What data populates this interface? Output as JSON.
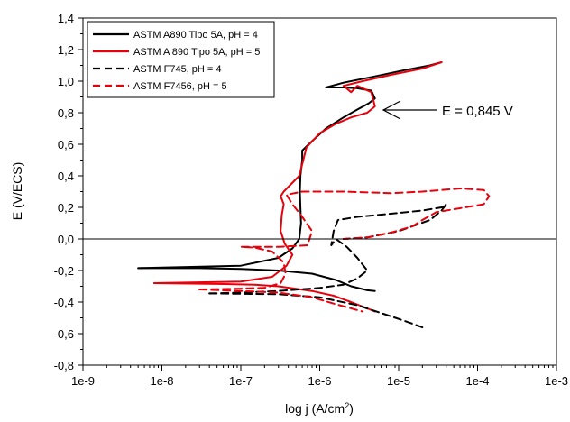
{
  "chart_data": {
    "type": "line",
    "title": "",
    "xlabel": "log j (A/cm",
    "xlabel_sup": "2",
    "xlabel_end": ")",
    "ylabel": "E (V/ECS)",
    "x_scale": "log",
    "xlim": [
      1e-09,
      0.001
    ],
    "ylim": [
      -0.8,
      1.4
    ],
    "x_ticks": [
      1e-09,
      1e-08,
      1e-07,
      1e-06,
      1e-05,
      0.0001,
      0.001
    ],
    "x_tick_labels": [
      "1e-9",
      "1e-8",
      "1e-7",
      "1e-6",
      "1e-5",
      "1e-4",
      "1e-3"
    ],
    "y_ticks": [
      -0.8,
      -0.6,
      -0.4,
      -0.2,
      0.0,
      0.2,
      0.4,
      0.6,
      0.8,
      1.0,
      1.2,
      1.4
    ],
    "y_tick_labels": [
      "-0,8",
      "-0,6",
      "-0,4",
      "-0,2",
      "0,0",
      "0,2",
      "0,4",
      "0,6",
      "0,8",
      "1,0",
      "1,2",
      "1,4"
    ],
    "grid": false,
    "legend_position": "top-left",
    "reference_line_y": 0.0,
    "annotation": {
      "text": "E = 0,845 V",
      "x": 6e-06,
      "y": 0.82
    },
    "series": [
      {
        "name": "ASTM A890 Tipo 5A, pH = 4",
        "color": "#000000",
        "dash": "solid",
        "points": [
          [
            5e-09,
            -0.185
          ],
          [
            3e-08,
            -0.185
          ],
          [
            1e-07,
            -0.19
          ],
          [
            3e-07,
            -0.2
          ],
          [
            8e-07,
            -0.22
          ],
          [
            1.6e-06,
            -0.26
          ],
          [
            2.5e-06,
            -0.3
          ],
          [
            4e-06,
            -0.325
          ],
          [
            5e-06,
            -0.33
          ]
        ]
      },
      {
        "name": "ASTM A890 Tipo 5A, pH = 4",
        "color": "#000000",
        "dash": "solid",
        "points": [
          [
            5e-09,
            -0.185
          ],
          [
            1e-07,
            -0.17
          ],
          [
            3e-07,
            -0.12
          ],
          [
            4.5e-07,
            -0.06
          ],
          [
            5.5e-07,
            0.0
          ],
          [
            5.8e-07,
            0.1
          ],
          [
            5.7e-07,
            0.2
          ],
          [
            5.6e-07,
            0.3
          ],
          [
            5.7e-07,
            0.4
          ],
          [
            6e-07,
            0.5
          ],
          [
            6e-07,
            0.56
          ],
          [
            8e-07,
            0.62
          ],
          [
            1.2e-06,
            0.7
          ],
          [
            2e-06,
            0.77
          ],
          [
            3e-06,
            0.82
          ],
          [
            4.2e-06,
            0.86
          ],
          [
            5e-06,
            0.89
          ],
          [
            4.5e-06,
            0.94
          ],
          [
            3e-06,
            0.955
          ],
          [
            2e-06,
            0.96
          ],
          [
            1.2e-06,
            0.96
          ],
          [
            2e-06,
            0.99
          ],
          [
            5e-06,
            1.03
          ],
          [
            1.2e-05,
            1.07
          ],
          [
            2.5e-05,
            1.1
          ],
          [
            3.5e-05,
            1.12
          ]
        ]
      },
      {
        "name": "ASTM A 890 Tipo 5A, pH = 5",
        "color": "#e8000b",
        "dash": "solid",
        "points": [
          [
            8e-09,
            -0.28
          ],
          [
            5e-08,
            -0.285
          ],
          [
            1.5e-07,
            -0.29
          ],
          [
            3e-07,
            -0.3
          ],
          [
            8e-07,
            -0.33
          ],
          [
            1.5e-06,
            -0.36
          ],
          [
            2.5e-06,
            -0.4
          ],
          [
            4e-06,
            -0.44
          ],
          [
            5e-06,
            -0.46
          ]
        ]
      },
      {
        "name": "ASTM A 890 Tipo 5A, pH = 5",
        "color": "#e8000b",
        "dash": "solid",
        "points": [
          [
            8e-09,
            -0.28
          ],
          [
            1e-07,
            -0.27
          ],
          [
            2.5e-07,
            -0.24
          ],
          [
            3.8e-07,
            -0.17
          ],
          [
            4.5e-07,
            -0.1
          ],
          [
            3.6e-07,
            -0.03
          ],
          [
            3.2e-07,
            0.05
          ],
          [
            3.3e-07,
            0.15
          ],
          [
            3.5e-07,
            0.22
          ],
          [
            3.2e-07,
            0.27
          ],
          [
            3.5e-07,
            0.3
          ],
          [
            5.5e-07,
            0.4
          ],
          [
            6.2e-07,
            0.5
          ],
          [
            6.8e-07,
            0.58
          ],
          [
            1e-06,
            0.67
          ],
          [
            1.6e-06,
            0.73
          ],
          [
            2.5e-06,
            0.77
          ],
          [
            4e-06,
            0.8
          ],
          [
            5e-06,
            0.84
          ],
          [
            4.5e-06,
            0.93
          ],
          [
            3e-06,
            0.97
          ],
          [
            2.5e-06,
            0.93
          ],
          [
            2e-06,
            0.97
          ],
          [
            3.5e-06,
            1.0
          ],
          [
            8e-06,
            1.04
          ],
          [
            2e-05,
            1.08
          ],
          [
            3.5e-05,
            1.12
          ]
        ]
      },
      {
        "name": "ASTM F745, pH = 4",
        "color": "#000000",
        "dash": "dashed",
        "points": [
          [
            4e-08,
            -0.345
          ],
          [
            1e-07,
            -0.34
          ],
          [
            3e-07,
            -0.33
          ],
          [
            1e-06,
            -0.31
          ],
          [
            2e-06,
            -0.29
          ],
          [
            3e-06,
            -0.25
          ],
          [
            4e-06,
            -0.2
          ],
          [
            3e-06,
            -0.12
          ],
          [
            2.2e-06,
            -0.05
          ],
          [
            1.6e-06,
            0.0
          ],
          [
            1.4e-06,
            -0.04
          ],
          [
            1.5e-06,
            0.05
          ],
          [
            1.7e-06,
            0.12
          ],
          [
            3e-06,
            0.14
          ],
          [
            8e-06,
            0.16
          ],
          [
            2e-05,
            0.18
          ],
          [
            3.5e-05,
            0.2
          ],
          [
            4e-05,
            0.22
          ],
          [
            3.5e-05,
            0.18
          ],
          [
            2.5e-05,
            0.12
          ],
          [
            1e-05,
            0.05
          ],
          [
            4e-06,
            0.01
          ],
          [
            2e-06,
            0.0
          ]
        ]
      },
      {
        "name": "ASTM F745, pH = 4",
        "color": "#000000",
        "dash": "dashed",
        "points": [
          [
            4e-08,
            -0.345
          ],
          [
            3e-07,
            -0.35
          ],
          [
            1e-06,
            -0.37
          ],
          [
            3e-06,
            -0.42
          ],
          [
            6e-06,
            -0.47
          ],
          [
            1.2e-05,
            -0.52
          ],
          [
            2e-05,
            -0.56
          ]
        ]
      },
      {
        "name": "ASTM F7456, pH = 5",
        "color": "#e8000b",
        "dash": "dashed",
        "points": [
          [
            3e-08,
            -0.32
          ],
          [
            1e-07,
            -0.315
          ],
          [
            2e-07,
            -0.31
          ],
          [
            3.2e-07,
            -0.28
          ],
          [
            3.7e-07,
            -0.22
          ],
          [
            3.5e-07,
            -0.15
          ],
          [
            2.5e-07,
            -0.08
          ],
          [
            1.5e-07,
            -0.055
          ],
          [
            1e-07,
            -0.05
          ],
          [
            3e-07,
            -0.05
          ],
          [
            7e-07,
            -0.04
          ],
          [
            8e-07,
            0.05
          ],
          [
            6e-07,
            0.14
          ],
          [
            4.5e-07,
            0.22
          ],
          [
            3.8e-07,
            0.28
          ],
          [
            6e-07,
            0.3
          ],
          [
            2e-06,
            0.3
          ],
          [
            8e-06,
            0.29
          ],
          [
            2e-05,
            0.3
          ],
          [
            6e-05,
            0.32
          ],
          [
            0.00012,
            0.31
          ],
          [
            0.00014,
            0.27
          ],
          [
            0.00012,
            0.22
          ],
          [
            7e-05,
            0.2
          ],
          [
            3e-05,
            0.17
          ],
          [
            2e-05,
            0.12
          ],
          [
            1.5e-05,
            0.08
          ],
          [
            8e-06,
            0.04
          ],
          [
            4e-06,
            0.01
          ],
          [
            2e-06,
            0.0
          ]
        ]
      },
      {
        "name": "ASTM F7456, pH = 5",
        "color": "#e8000b",
        "dash": "dashed",
        "points": [
          [
            3e-08,
            -0.32
          ],
          [
            1e-07,
            -0.33
          ],
          [
            3e-07,
            -0.34
          ],
          [
            8e-07,
            -0.37
          ],
          [
            1.5e-06,
            -0.41
          ],
          [
            2.5e-06,
            -0.44
          ],
          [
            3.5e-06,
            -0.46
          ]
        ]
      }
    ],
    "legend": [
      {
        "label": "ASTM A890 Tipo 5A, pH = 4",
        "color": "#000000",
        "dash": "solid"
      },
      {
        "label": "ASTM A 890 Tipo 5A, pH = 5",
        "color": "#e8000b",
        "dash": "solid"
      },
      {
        "label": "ASTM F745, pH = 4",
        "color": "#000000",
        "dash": "dashed"
      },
      {
        "label": "ASTM F7456, pH = 5",
        "color": "#e8000b",
        "dash": "dashed"
      }
    ]
  }
}
